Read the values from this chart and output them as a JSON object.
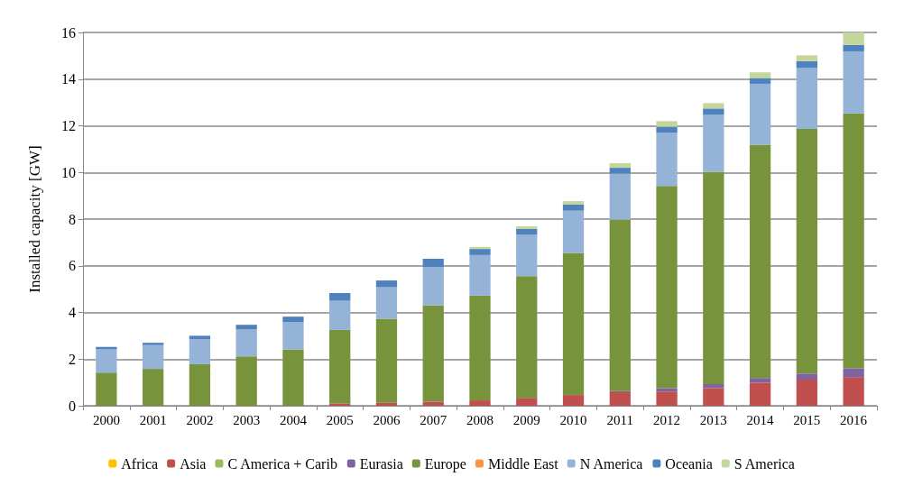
{
  "chart_data": {
    "type": "bar",
    "stacked": true,
    "ylabel": "Installed capacity [GW]",
    "categories": [
      "2000",
      "2001",
      "2002",
      "2003",
      "2004",
      "2005",
      "2006",
      "2007",
      "2008",
      "2009",
      "2010",
      "2011",
      "2012",
      "2013",
      "2014",
      "2015",
      "2016"
    ],
    "ylim": [
      0,
      16
    ],
    "yticks": [
      0,
      2,
      4,
      6,
      8,
      10,
      12,
      14,
      16
    ],
    "grid": "y",
    "legend": "bottom",
    "series": [
      {
        "name": "Africa",
        "color": "#ffc000",
        "values": [
          0,
          0,
          0,
          0,
          0,
          0,
          0,
          0,
          0,
          0,
          0,
          0,
          0,
          0,
          0,
          0,
          0
        ]
      },
      {
        "name": "Asia",
        "color": "#c0504d",
        "values": [
          0,
          0,
          0,
          null,
          null,
          0.1,
          0.14,
          0.18,
          0.23,
          0.34,
          0.46,
          0.58,
          0.61,
          0.76,
          0.99,
          1.12,
          1.23
        ]
      },
      {
        "name": "C America + Carib",
        "color": "#9bbb59",
        "values": [
          0,
          0,
          0,
          0,
          0,
          0,
          0,
          0,
          0,
          0,
          0,
          0,
          0,
          0,
          0,
          0,
          0
        ]
      },
      {
        "name": "Eurasia",
        "color": "#8064a2",
        "values": [
          0,
          0,
          0,
          0,
          0,
          0,
          0,
          0,
          0,
          0,
          0,
          0.05,
          0.15,
          0.17,
          0.2,
          0.26,
          0.38
        ]
      },
      {
        "name": "Europe",
        "color": "#77933c",
        "values": [
          1.42,
          1.58,
          1.78,
          2.12,
          2.42,
          3.15,
          3.59,
          4.12,
          4.49,
          5.22,
          6.09,
          7.35,
          8.66,
          9.1,
          10.0,
          10.48,
          10.92
        ]
      },
      {
        "name": "Middle East",
        "color": "#f79646",
        "values": [
          0,
          0,
          0,
          0,
          0,
          0,
          0,
          0,
          0,
          0,
          0,
          0,
          0,
          0,
          0,
          0,
          0
        ]
      },
      {
        "name": "N America",
        "color": "#95b3d7",
        "values": [
          1.0,
          1.02,
          1.07,
          1.15,
          1.16,
          1.25,
          1.35,
          1.65,
          1.74,
          1.77,
          1.81,
          1.97,
          2.28,
          2.45,
          2.61,
          2.62,
          2.66
        ]
      },
      {
        "name": "Oceania",
        "color": "#4f81bd",
        "values": [
          0.1,
          0.1,
          0.15,
          0.2,
          0.24,
          0.33,
          0.29,
          0.35,
          0.26,
          0.26,
          0.26,
          0.25,
          0.26,
          0.26,
          0.25,
          0.29,
          0.28
        ]
      },
      {
        "name": "S America",
        "color": "#c3d69b",
        "values": [
          0,
          0,
          0,
          0,
          0,
          0,
          0,
          0,
          0.09,
          0.1,
          0.15,
          0.2,
          0.24,
          0.23,
          0.24,
          0.25,
          0.53
        ]
      }
    ]
  }
}
